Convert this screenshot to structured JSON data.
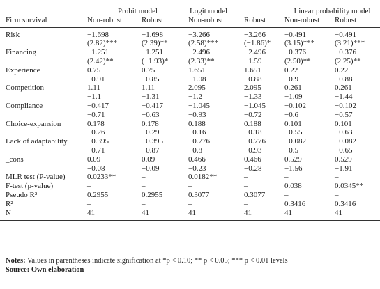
{
  "table": {
    "group_headers": [
      "Probit model",
      "Logit model",
      "Linear probability model"
    ],
    "columns": [
      "Firm survival",
      "Non-robust",
      "Robust",
      "Non-robust",
      "Robust",
      "Non-robust",
      "Robust"
    ],
    "rows": [
      {
        "label": "Risk",
        "values": [
          "−1.698",
          "−1.698",
          "−3.266",
          "−3.266",
          "−0.491",
          "−0.491"
        ],
        "se": [
          "(2.82)***",
          "(2.39)**",
          "(2.58)***",
          "(−1.86)*",
          "(3.15)***",
          "(3.21)***"
        ]
      },
      {
        "label": "Financing",
        "values": [
          "−1.251",
          "−1.251",
          "−2.496",
          "−2.496",
          "−0.376",
          "−0.376"
        ],
        "se": [
          "(2.42)**",
          "(−1.93)*",
          "(2.33)**",
          "−1.59",
          "(2.50)**",
          "(2.25)**"
        ]
      },
      {
        "label": "Experience",
        "values": [
          "0.75",
          "0.75",
          "1.651",
          "1.651",
          "0.22",
          "0.22"
        ],
        "se": [
          "−0.91",
          "−0.85",
          "−1.08",
          "−0.88",
          "−0.9",
          "−0.88"
        ]
      },
      {
        "label": "Competition",
        "values": [
          "1.11",
          "1.11",
          "2.095",
          "2.095",
          "0.261",
          "0.261"
        ],
        "se": [
          "−1.1",
          "−1.31",
          "−1.2",
          "−1.33",
          "−1.09",
          "−1.44"
        ]
      },
      {
        "label": "Compliance",
        "values": [
          "−0.417",
          "−0.417",
          "−1.045",
          "−1.045",
          "−0.102",
          "−0.102"
        ],
        "se": [
          "−0.71",
          "−0.63",
          "−0.93",
          "−0.72",
          "−0.6",
          "−0.57"
        ]
      },
      {
        "label": "Choice-expansion",
        "values": [
          "0.178",
          "0.178",
          "0.188",
          "0.188",
          "0.101",
          "0.101"
        ],
        "se": [
          "−0.26",
          "−0.29",
          "−0.16",
          "−0.18",
          "−0.55",
          "−0.63"
        ]
      },
      {
        "label": "Lack of adaptability",
        "values": [
          "−0.395",
          "−0.395",
          "−0.776",
          "−0.776",
          "−0.082",
          "−0.082"
        ],
        "se": [
          "−0.71",
          "−0.87",
          "−0.8",
          "−0.93",
          "−0.5",
          "−0.65"
        ]
      },
      {
        "label": "_cons",
        "values": [
          "0.09",
          "0.09",
          "0.466",
          "0.466",
          "0.529",
          "0.529"
        ],
        "se": [
          "−0.08",
          "−0.09",
          "−0.23",
          "−0.28",
          "−1.56",
          "−1.91"
        ]
      },
      {
        "label": "MLR test (P-value)",
        "values": [
          "0.0233**",
          "–",
          "0.0182**",
          "–",
          "–",
          "–"
        ]
      },
      {
        "label": "F-test (p-value)",
        "values": [
          "–",
          "–",
          "–",
          "–",
          "0.038",
          "0.0345**"
        ]
      },
      {
        "label": "Pseudo R²",
        "values": [
          "0.2955",
          "0.2955",
          "0.3077",
          "0.3077",
          "–",
          "–"
        ]
      },
      {
        "label": "R²",
        "values": [
          "–",
          "–",
          "–",
          "–",
          "0.3416",
          "0.3416"
        ]
      },
      {
        "label": "N",
        "values": [
          "41",
          "41",
          "41",
          "41",
          "41",
          "41"
        ]
      }
    ]
  },
  "notes": {
    "label": "Notes:",
    "text": "Values in parentheses indicate signification at *p < 0.10; ** p < 0.05; *** p < 0.01 levels"
  },
  "source": "Source: Own elaboration"
}
